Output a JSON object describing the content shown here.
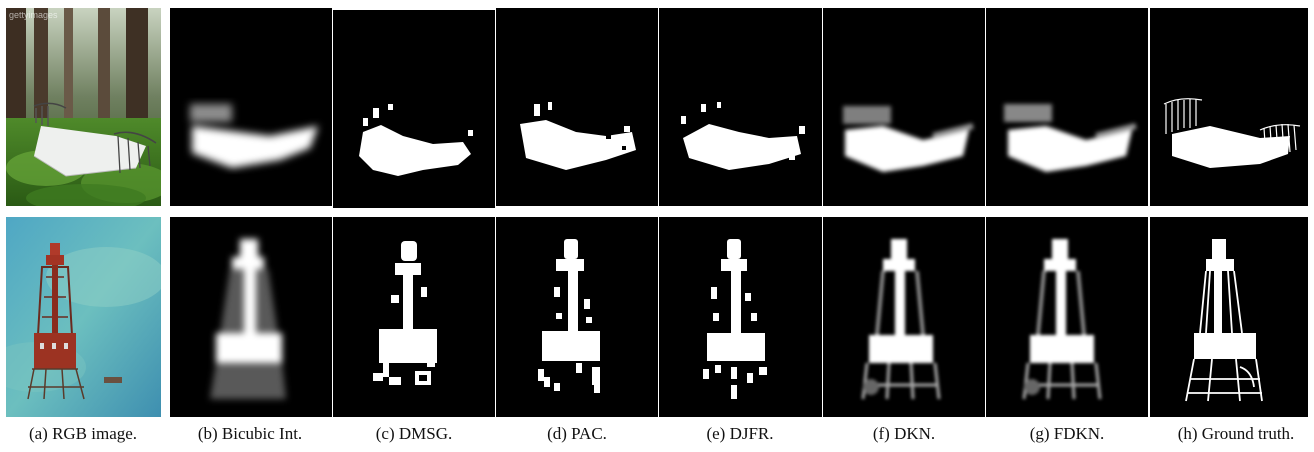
{
  "captions": [
    "(a) RGB image.",
    "(b) Bicubic Int.",
    "(c) DMSG.",
    "(d) PAC.",
    "(e) DJFR.",
    "(f) DKN.",
    "(g) FDKN.",
    "(h) Ground truth."
  ],
  "watermark": "gettyimages",
  "colors": {
    "background": "#ffffff",
    "mask_bg": "#000000",
    "mask_fg": "#ffffff"
  }
}
